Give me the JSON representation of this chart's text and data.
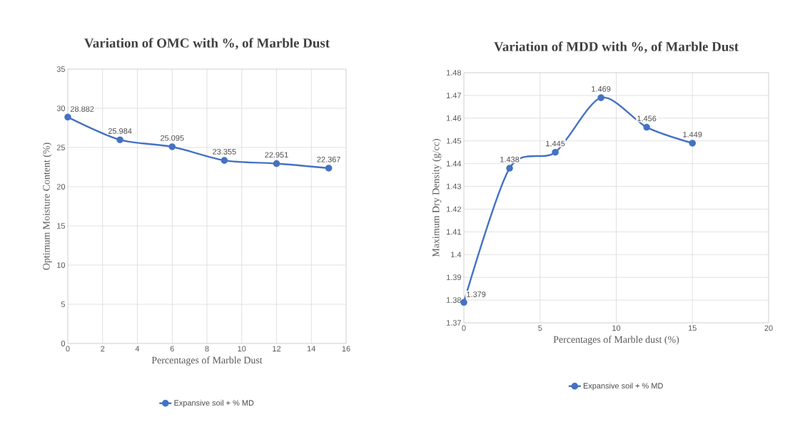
{
  "chart_data": [
    {
      "type": "line",
      "title": "Variation of OMC with %, of Marble Dust",
      "xlabel": "Percentages of Marble Dust",
      "ylabel": "Optimum Moisture Content (%)",
      "x": [
        0,
        3,
        6,
        9,
        12,
        15
      ],
      "series": [
        {
          "name": "Expansive soil + % MD",
          "color": "#4472c4",
          "values": [
            28.882,
            25.984,
            25.095,
            23.355,
            22.951,
            22.367
          ]
        }
      ],
      "xlim": [
        0,
        16
      ],
      "xticks": [
        0,
        2,
        4,
        6,
        8,
        10,
        12,
        14,
        16
      ],
      "ylim": [
        0,
        35
      ],
      "yticks": [
        0,
        5,
        10,
        15,
        20,
        25,
        30,
        35
      ],
      "grid": true,
      "legend": "bottom",
      "marker": "circle",
      "data_labels": true
    },
    {
      "type": "line",
      "title": "Variation of MDD with %, of Marble Dust",
      "xlabel": "Percentages of Marble dust (%)",
      "ylabel": "Maximum Dry Density (g/cc)",
      "x": [
        0,
        3,
        6,
        9,
        12,
        15
      ],
      "series": [
        {
          "name": "Expansive soil + % MD",
          "color": "#4472c4",
          "values": [
            1.379,
            1.438,
            1.445,
            1.469,
            1.456,
            1.449
          ]
        }
      ],
      "xlim": [
        0,
        20
      ],
      "xticks": [
        0,
        5,
        10,
        15,
        20
      ],
      "ylim": [
        1.37,
        1.48
      ],
      "yticks": [
        1.37,
        1.38,
        1.39,
        1.4,
        1.41,
        1.42,
        1.43,
        1.44,
        1.45,
        1.46,
        1.47,
        1.48
      ],
      "grid": true,
      "legend": "bottom",
      "marker": "circle",
      "data_labels": true
    }
  ]
}
